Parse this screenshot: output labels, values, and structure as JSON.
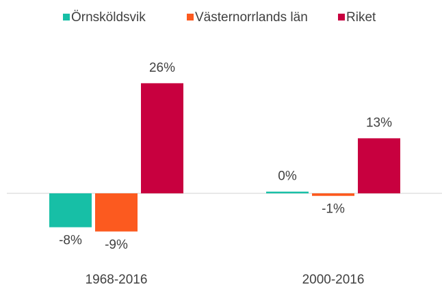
{
  "chart_data": {
    "type": "bar",
    "categories": [
      "1968-2016",
      "2000-2016"
    ],
    "series": [
      {
        "name": "Örnsköldsvik",
        "color": "#17bfa6",
        "values": [
          -8,
          0.4
        ],
        "value_labels": [
          "-8%",
          "0%"
        ]
      },
      {
        "name": "Västernorrlands län",
        "color": "#fc5a1f",
        "values": [
          -9,
          -0.6
        ],
        "value_labels": [
          "-9%",
          "-1%"
        ]
      },
      {
        "name": "Riket",
        "color": "#c8003f",
        "values": [
          26,
          13
        ],
        "value_labels": [
          "26%",
          "13%"
        ]
      }
    ],
    "legend": "top"
  }
}
